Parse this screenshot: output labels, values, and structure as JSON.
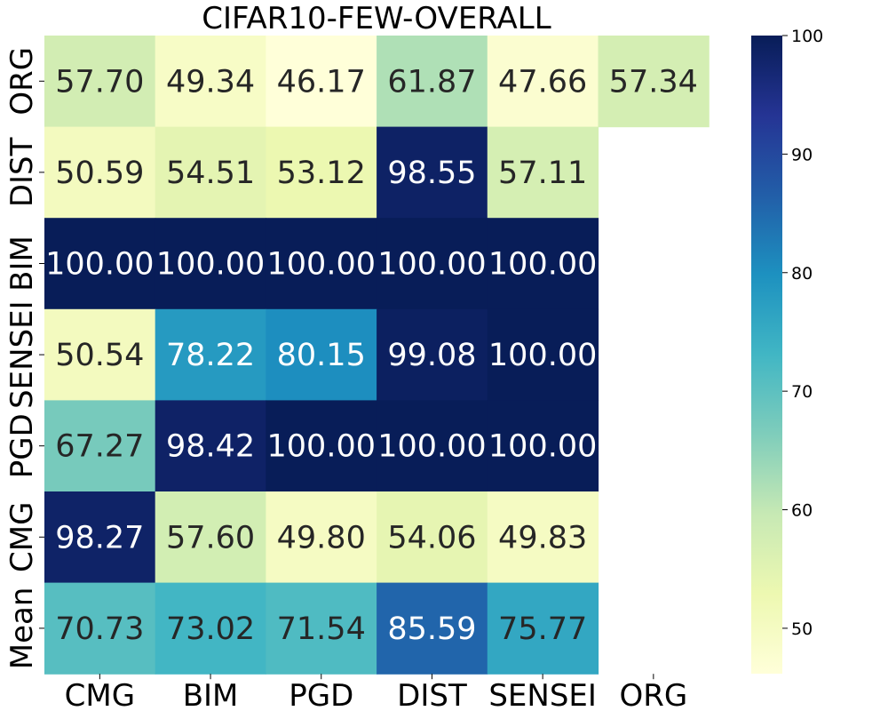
{
  "chart_data": {
    "type": "heatmap",
    "title": "CIFAR10-FEW-OVERALL",
    "x_categories": [
      "CMG",
      "BIM",
      "PGD",
      "DIST",
      "SENSEI",
      "ORG"
    ],
    "y_categories": [
      "ORG",
      "DIST",
      "BIM",
      "SENSEI",
      "PGD",
      "CMG",
      "Mean"
    ],
    "values": [
      [
        57.7,
        49.34,
        46.17,
        61.87,
        47.66,
        57.34
      ],
      [
        50.59,
        54.51,
        53.12,
        98.55,
        57.11,
        null
      ],
      [
        100.0,
        100.0,
        100.0,
        100.0,
        100.0,
        null
      ],
      [
        50.54,
        78.22,
        80.15,
        99.08,
        100.0,
        null
      ],
      [
        67.27,
        98.42,
        100.0,
        100.0,
        100.0,
        null
      ],
      [
        98.27,
        57.6,
        49.8,
        54.06,
        49.83,
        null
      ],
      [
        70.73,
        73.02,
        71.54,
        85.59,
        75.77,
        null
      ]
    ],
    "value_format": "2 decimals",
    "colormap": "YlGnBu",
    "colorbar": {
      "min": 46.17,
      "max": 100,
      "ticks": [
        50,
        60,
        70,
        80,
        90,
        100
      ]
    },
    "colormap_stops": [
      "#ffffd9",
      "#edf8b1",
      "#c7e9b4",
      "#7fcdbb",
      "#41b6c4",
      "#1d91c0",
      "#225ea8",
      "#253494",
      "#081d58"
    ],
    "label_colors": {
      "dark": "#262626",
      "light": "#ffffff"
    }
  }
}
